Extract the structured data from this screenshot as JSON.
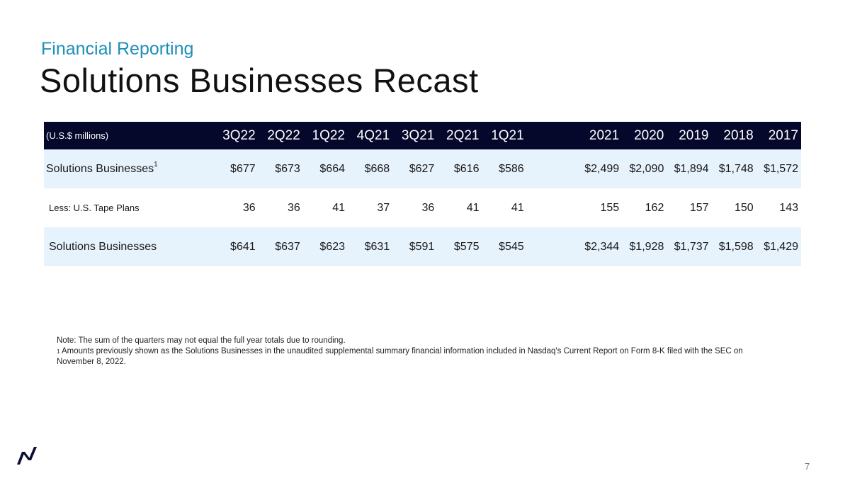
{
  "header": {
    "kicker": "Financial Reporting",
    "title": "Solutions Businesses Recast"
  },
  "table": {
    "unit_label": "(U.S.$ millions)",
    "columns": [
      "3Q22",
      "2Q22",
      "1Q22",
      "4Q21",
      "3Q21",
      "2Q21",
      "1Q21",
      "2021",
      "2020",
      "2019",
      "2018",
      "2017"
    ],
    "rows": [
      {
        "label": "Solutions Businesses",
        "footnote": "1",
        "values": [
          "$677",
          "$673",
          "$664",
          "$668",
          "$627",
          "$616",
          "$586",
          "$2,499",
          "$2,090",
          "$1,894",
          "$1,748",
          "$1,572"
        ]
      },
      {
        "label": "Less: U.S. Tape Plans",
        "values": [
          "36",
          "36",
          "41",
          "37",
          "36",
          "41",
          "41",
          "155",
          "162",
          "157",
          "150",
          "143"
        ]
      },
      {
        "label": "Solutions Businesses",
        "values": [
          "$641",
          "$637",
          "$623",
          "$631",
          "$591",
          "$575",
          "$545",
          "$2,344",
          "$1,928",
          "$1,737",
          "$1,598",
          "$1,429"
        ]
      }
    ]
  },
  "notes": {
    "note": "Note: The sum of the quarters may not equal the full year totals due to rounding.",
    "footnote_marker": "1",
    "footnote_text": " Amounts previously shown as the Solutions Businesses in the unaudited supplemental summary financial information included in Nasdaq's Current Report on Form 8-K filed with the SEC on November 8, 2022."
  },
  "footer": {
    "page_number": "7"
  },
  "colors": {
    "kicker": "#1e8fb8",
    "header_bg": "#05082b",
    "row_shade": "#e6f2fc"
  },
  "icons": {
    "logo": "nasdaq-logo-icon"
  }
}
